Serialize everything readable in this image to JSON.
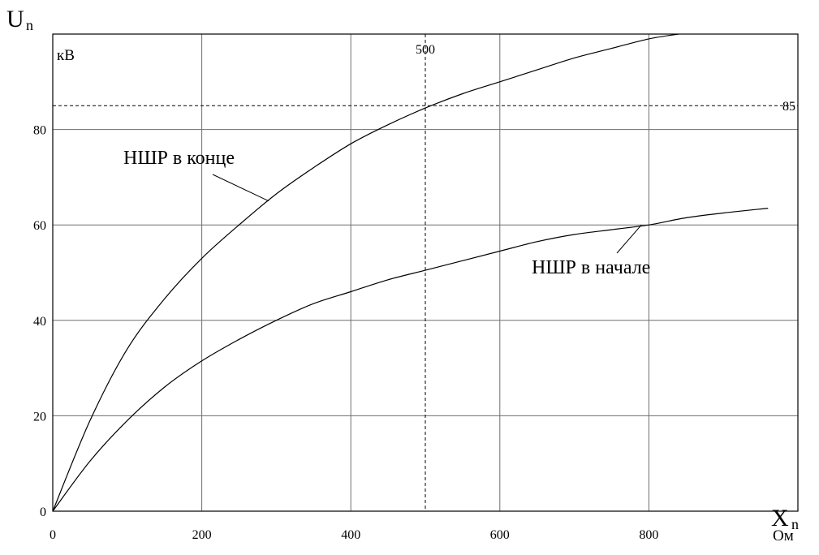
{
  "chart_data": {
    "type": "line",
    "x_axis": {
      "symbol": "X",
      "subscript": "n",
      "unit": "Ом",
      "range": [
        0,
        1000
      ],
      "ticks": [
        0,
        200,
        400,
        600,
        800
      ],
      "tick_labels": [
        "0",
        "200",
        "400",
        "600",
        "800"
      ]
    },
    "y_axis": {
      "symbol": "U",
      "subscript": "n",
      "unit": "кВ",
      "range": [
        0,
        100
      ],
      "ticks": [
        0,
        20,
        40,
        60,
        80
      ],
      "tick_labels": [
        "0",
        "20",
        "40",
        "60",
        "80"
      ]
    },
    "grid": true,
    "series": [
      {
        "name": "НШР в конце",
        "x": [
          0,
          50,
          100,
          150,
          200,
          250,
          300,
          350,
          400,
          450,
          500,
          550,
          600,
          650,
          700,
          750,
          800,
          840
        ],
        "y": [
          0,
          19,
          34,
          44.5,
          53,
          60,
          66.5,
          72,
          77,
          81,
          84.5,
          87.5,
          90,
          92.5,
          95,
          97,
          99,
          100
        ]
      },
      {
        "name": "НШР в начале",
        "x": [
          0,
          50,
          100,
          150,
          200,
          250,
          300,
          350,
          400,
          450,
          500,
          550,
          600,
          650,
          700,
          750,
          800,
          850,
          900,
          960
        ],
        "y": [
          0,
          10.5,
          19,
          26,
          31.5,
          36,
          40,
          43.5,
          46,
          48.5,
          50.5,
          52.5,
          54.5,
          56.5,
          58,
          59,
          60,
          61.5,
          62.5,
          63.5
        ]
      }
    ],
    "reference_lines": [
      {
        "orientation": "vertical",
        "value": 500,
        "label": "500",
        "style": "dashed"
      },
      {
        "orientation": "horizontal",
        "value": 85,
        "label": "85",
        "style": "dashed"
      }
    ],
    "annotations": [
      {
        "text": "НШР в конце",
        "series": 0,
        "point_x": 290,
        "point_y": 65
      },
      {
        "text": "НШР в начале",
        "series": 1,
        "point_x": 790,
        "point_y": 60
      }
    ]
  }
}
